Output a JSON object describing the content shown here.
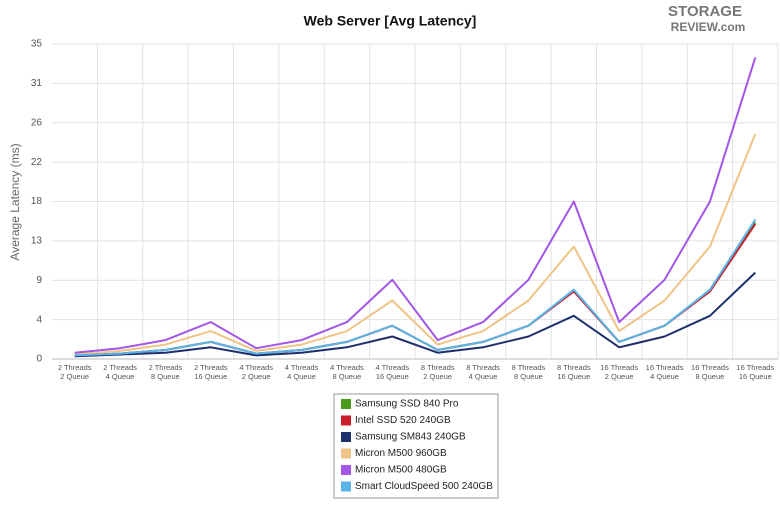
{
  "logo": {
    "line1": "STORAGE",
    "line2": "REVIEW.com"
  },
  "chart_data": {
    "type": "line",
    "title": "Web Server [Avg Latency]",
    "y_label": "Average Latency (ms)",
    "categories": [
      [
        "2 Threads",
        "2 Queue"
      ],
      [
        "2 Threads",
        "4 Queue"
      ],
      [
        "2 Threads",
        "8 Queue"
      ],
      [
        "2 Threads",
        "16 Queue"
      ],
      [
        "4 Threads",
        "2 Queue"
      ],
      [
        "4 Threads",
        "4 Queue"
      ],
      [
        "4 Threads",
        "8 Queue"
      ],
      [
        "4 Threads",
        "16 Queue"
      ],
      [
        "8 Threads",
        "2 Queue"
      ],
      [
        "8 Threads",
        "4 Queue"
      ],
      [
        "8 Threads",
        "8 Queue"
      ],
      [
        "8 Threads",
        "16 Queue"
      ],
      [
        "16 Threads",
        "2 Queue"
      ],
      [
        "16 Threads",
        "4 Queue"
      ],
      [
        "16 Threads",
        "8 Queue"
      ],
      [
        "16 Threads",
        "16 Queue"
      ]
    ],
    "series": [
      {
        "name": "Samsung SSD 840 Pro",
        "color": "#4c9a1c",
        "values": [
          0.4,
          0.6,
          1.0,
          1.9,
          0.6,
          1.0,
          1.9,
          3.7,
          1.0,
          1.9,
          3.7,
          7.6,
          1.9,
          3.7,
          7.6,
          15.2
        ]
      },
      {
        "name": "Intel SSD 520 240GB",
        "color": "#c8202a",
        "values": [
          0.4,
          0.6,
          1.0,
          1.9,
          0.6,
          1.0,
          1.9,
          3.7,
          1.0,
          1.9,
          3.7,
          7.5,
          1.9,
          3.7,
          7.5,
          15.0
        ]
      },
      {
        "name": "Samsung SM843 240GB",
        "color": "#1e2f6e",
        "values": [
          0.3,
          0.5,
          0.7,
          1.3,
          0.4,
          0.7,
          1.3,
          2.5,
          0.7,
          1.3,
          2.5,
          4.8,
          1.3,
          2.5,
          4.8,
          9.6
        ]
      },
      {
        "name": "Micron M500 960GB",
        "color": "#f0c386",
        "values": [
          0.5,
          0.9,
          1.6,
          3.1,
          0.9,
          1.6,
          3.1,
          6.5,
          1.6,
          3.1,
          6.5,
          12.5,
          3.1,
          6.5,
          12.5,
          25.0
        ]
      },
      {
        "name": "Micron M500 480GB",
        "color": "#a355e8",
        "values": [
          0.7,
          1.2,
          2.1,
          4.1,
          1.2,
          2.1,
          4.1,
          8.8,
          2.1,
          4.1,
          8.8,
          17.5,
          4.1,
          8.8,
          17.5,
          33.5
        ]
      },
      {
        "name": "Smart CloudSpeed 500 240GB",
        "color": "#5ab4ea",
        "values": [
          0.4,
          0.6,
          1.0,
          1.9,
          0.6,
          1.0,
          1.9,
          3.7,
          1.0,
          1.9,
          3.7,
          7.7,
          1.9,
          3.7,
          7.7,
          15.5
        ]
      }
    ],
    "ylim": [
      0,
      35
    ],
    "yticks": [
      0,
      {
        "value": 4.375,
        "label": "4"
      },
      {
        "value": 8.75,
        "label": "9"
      },
      {
        "value": 13.125,
        "label": "13"
      },
      {
        "value": 17.5,
        "label": "18"
      },
      {
        "value": 21.875,
        "label": "22"
      },
      {
        "value": 26.25,
        "label": "26"
      },
      {
        "value": 30.625,
        "label": "31"
      },
      35
    ],
    "grid": true
  }
}
